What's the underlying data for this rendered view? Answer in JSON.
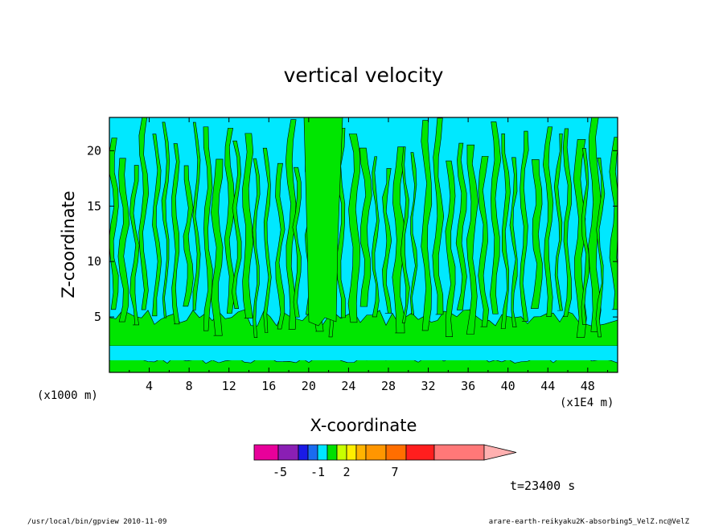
{
  "chart_data": {
    "type": "heatmap",
    "title": "vertical velocity",
    "xlabel": "X-coordinate",
    "ylabel": "Z-coordinate",
    "x_unit": "(x1E4 m)",
    "y_unit": "(x1000 m)",
    "x_ticks": [
      "4",
      "8",
      "12",
      "16",
      "20",
      "24",
      "28",
      "32",
      "36",
      "40",
      "44",
      "48"
    ],
    "y_ticks": [
      "5",
      "10",
      "15",
      "20"
    ],
    "xlim": [
      0,
      51
    ],
    "ylim": [
      0,
      23
    ],
    "colorbar": {
      "colors": [
        "#e8009a",
        "#8a1fb4",
        "#1a1ae6",
        "#1a6cf0",
        "#00e5ff",
        "#00e000",
        "#c8ff00",
        "#ffee00",
        "#ffb400",
        "#ff9600",
        "#ff6e00",
        "#ff1e1e",
        "#ff7878",
        "#ffb0b0"
      ],
      "labels": [
        "-5",
        "-1",
        "2",
        "7"
      ],
      "label_values": [
        -5,
        -1,
        2,
        7
      ]
    },
    "fill_colors": {
      "positive": "#00e600",
      "negative": "#00e8ff"
    },
    "time": "t=23400 s"
  },
  "footer": {
    "left": "/usr/local/bin/gpview  2010-11-09",
    "right": "arare-earth-reikyaku2K-absorbing5_VelZ.nc@VelZ"
  }
}
